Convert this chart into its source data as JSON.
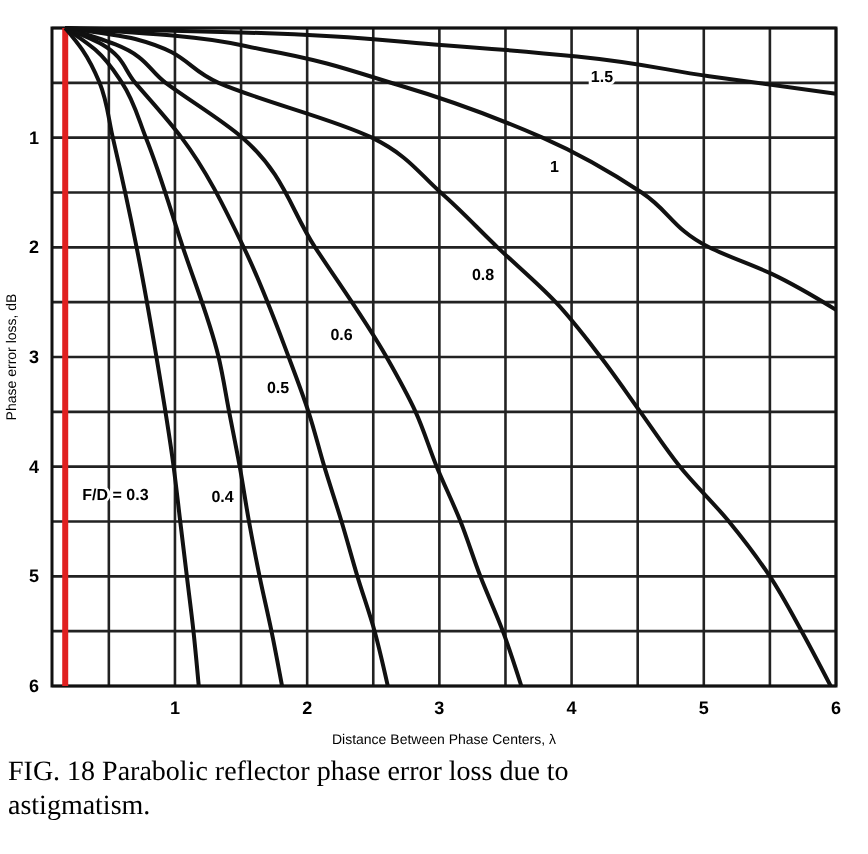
{
  "chart_data": {
    "type": "line",
    "xlabel": "Distance Between Phase Centers, λ",
    "ylabel": "Phase error loss, dB",
    "xlim": [
      0.07,
      6
    ],
    "ylim": [
      6,
      0
    ],
    "xticks": [
      {
        "value": 0.5,
        "label": null
      },
      1,
      {
        "value": 1.5,
        "label": null
      },
      2,
      {
        "value": 2.5,
        "label": null
      },
      3,
      {
        "value": 3.5,
        "label": null
      },
      4,
      {
        "value": 4.5,
        "label": null
      },
      5,
      {
        "value": 5.5,
        "label": null
      },
      6
    ],
    "yticks": [
      {
        "value": 0,
        "label": null
      },
      {
        "value": 0.5,
        "label": null
      },
      1,
      {
        "value": 1.5,
        "label": null
      },
      2,
      {
        "value": 2.5,
        "label": null
      },
      3,
      {
        "value": 3.5,
        "label": null
      },
      4,
      {
        "value": 4.5,
        "label": null
      },
      5,
      {
        "value": 5.5,
        "label": null
      },
      6
    ],
    "grid": true,
    "marker": "none",
    "line_style": "solid",
    "series": [
      {
        "name": "F/D = 0.3",
        "color": "#111111",
        "x": [
          0.17,
          0.3,
          0.43,
          0.53,
          0.71,
          0.86,
          0.99,
          1.04,
          1.09,
          1.14,
          1.18
        ],
        "values": [
          0,
          0.2,
          0.5,
          1,
          2,
          3,
          4,
          4.5,
          5,
          5.5,
          6
        ]
      },
      {
        "name": "0.4",
        "color": "#111111",
        "x": [
          0.17,
          0.4,
          0.6,
          0.78,
          1.06,
          1.33,
          1.41,
          1.49,
          1.56,
          1.64,
          1.73,
          1.81
        ],
        "values": [
          0,
          0.2,
          0.5,
          1,
          2,
          3,
          3.5,
          4,
          4.5,
          5,
          5.5,
          6
        ]
      },
      {
        "name": "0.5",
        "color": "#111111",
        "x": [
          0.17,
          0.45,
          0.7,
          1.05,
          1.52,
          1.86,
          2.01,
          2.13,
          2.26,
          2.38,
          2.51,
          2.61
        ],
        "values": [
          0,
          0.15,
          0.5,
          1,
          2,
          3,
          3.5,
          4,
          4.5,
          5,
          5.5,
          6
        ]
      },
      {
        "name": "0.6",
        "color": "#111111",
        "x": [
          0.17,
          0.55,
          0.93,
          1.51,
          2.06,
          2.6,
          2.82,
          2.98,
          3.16,
          3.31,
          3.48,
          3.62
        ],
        "values": [
          0,
          0.15,
          0.5,
          1,
          2,
          3,
          3.5,
          4,
          4.5,
          5,
          5.5,
          6
        ]
      },
      {
        "name": "0.8",
        "color": "#111111",
        "x": [
          0.17,
          0.7,
          1.33,
          2.49,
          3.01,
          3.44,
          3.88,
          4.22,
          4.52,
          4.82,
          5.19,
          5.5,
          5.74,
          5.96
        ],
        "values": [
          0,
          0.1,
          0.5,
          1,
          1.5,
          2,
          2.5,
          3,
          3.5,
          4,
          4.5,
          5,
          5.5,
          6
        ]
      },
      {
        "name": "1",
        "color": "#111111",
        "x": [
          0.17,
          1.0,
          1.68,
          2.69,
          3.78,
          4.53,
          5.04,
          5.51,
          6.0
        ],
        "values": [
          0,
          0.07,
          0.2,
          0.52,
          1,
          1.5,
          2,
          2.24,
          2.57
        ]
      },
      {
        "name": "1.5",
        "color": "#111111",
        "x": [
          0.17,
          1.5,
          2.96,
          4.04,
          5.04,
          6.0
        ],
        "values": [
          0,
          0.04,
          0.15,
          0.26,
          0.44,
          0.6
        ]
      }
    ],
    "ref_lines": [
      {
        "axis": "x",
        "value": 0.17,
        "color": "#e02020"
      }
    ],
    "annotations": [
      "FIG. 18 Parabolic reflector phase error loss due to astigmatism."
    ]
  }
}
